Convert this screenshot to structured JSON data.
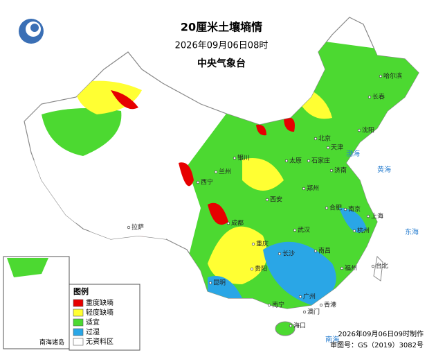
{
  "header": {
    "title": "20厘米土壤墒情",
    "time": "2026年09月06日08时",
    "agency": "中央气象台"
  },
  "legend": {
    "title": "图例",
    "items": [
      {
        "label": "重度缺墒",
        "color": "#e60000"
      },
      {
        "label": "轻度缺墒",
        "color": "#ffff33"
      },
      {
        "label": "适宜",
        "color": "#4cd931"
      },
      {
        "label": "过湿",
        "color": "#2aa6e6"
      },
      {
        "label": "无资料区",
        "color": "#ffffff"
      }
    ]
  },
  "inset": {
    "label": "南海诸岛"
  },
  "footer": {
    "made": "2026年09月06日09时制作",
    "approval": "审图号：GS（2019）3082号"
  },
  "cities": [
    "北京",
    "天津",
    "石家庄",
    "济南",
    "太原",
    "郑州",
    "西安",
    "银川",
    "西宁",
    "兰州",
    "武汉",
    "南京",
    "上海",
    "杭州",
    "合肥",
    "长沙",
    "南昌",
    "福州",
    "广州",
    "香港",
    "澳门",
    "南宁",
    "昆明",
    "贵阳",
    "重庆",
    "成都",
    "拉萨",
    "沈阳",
    "长春",
    "哈尔滨",
    "台北",
    "海口"
  ],
  "seas": [
    "渤海",
    "黄海",
    "东海",
    "南海"
  ]
}
